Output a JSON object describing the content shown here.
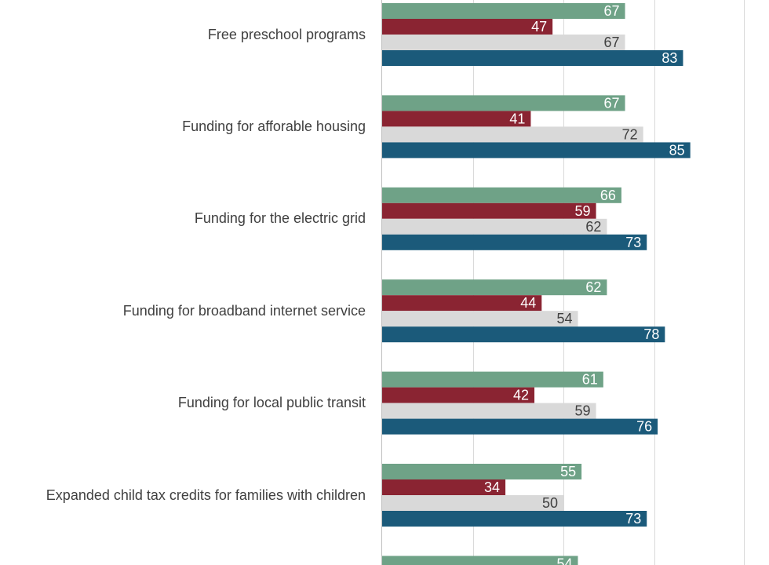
{
  "chart_data": {
    "type": "bar",
    "orientation": "horizontal",
    "title": "",
    "xlabel": "",
    "ylabel": "",
    "grid": true,
    "categories": [
      "Free preschool programs",
      "Funding for afforable housing",
      "Funding for the electric grid",
      "Funding for broadband internet service",
      "Funding for local public transit",
      "Expanded child tax credits for families with children",
      ""
    ],
    "series": [
      {
        "color": "#6fa287",
        "values": [
          67,
          67,
          66,
          62,
          61,
          55,
          54
        ]
      },
      {
        "color": "#8a2432",
        "values": [
          47,
          41,
          59,
          44,
          42,
          34,
          null
        ]
      },
      {
        "color": "#d9d9d9",
        "values": [
          67,
          72,
          62,
          54,
          59,
          50,
          null
        ]
      },
      {
        "color": "#1b5a7a",
        "values": [
          83,
          85,
          73,
          78,
          76,
          73,
          null
        ]
      }
    ],
    "xlim": [
      0,
      100
    ]
  }
}
